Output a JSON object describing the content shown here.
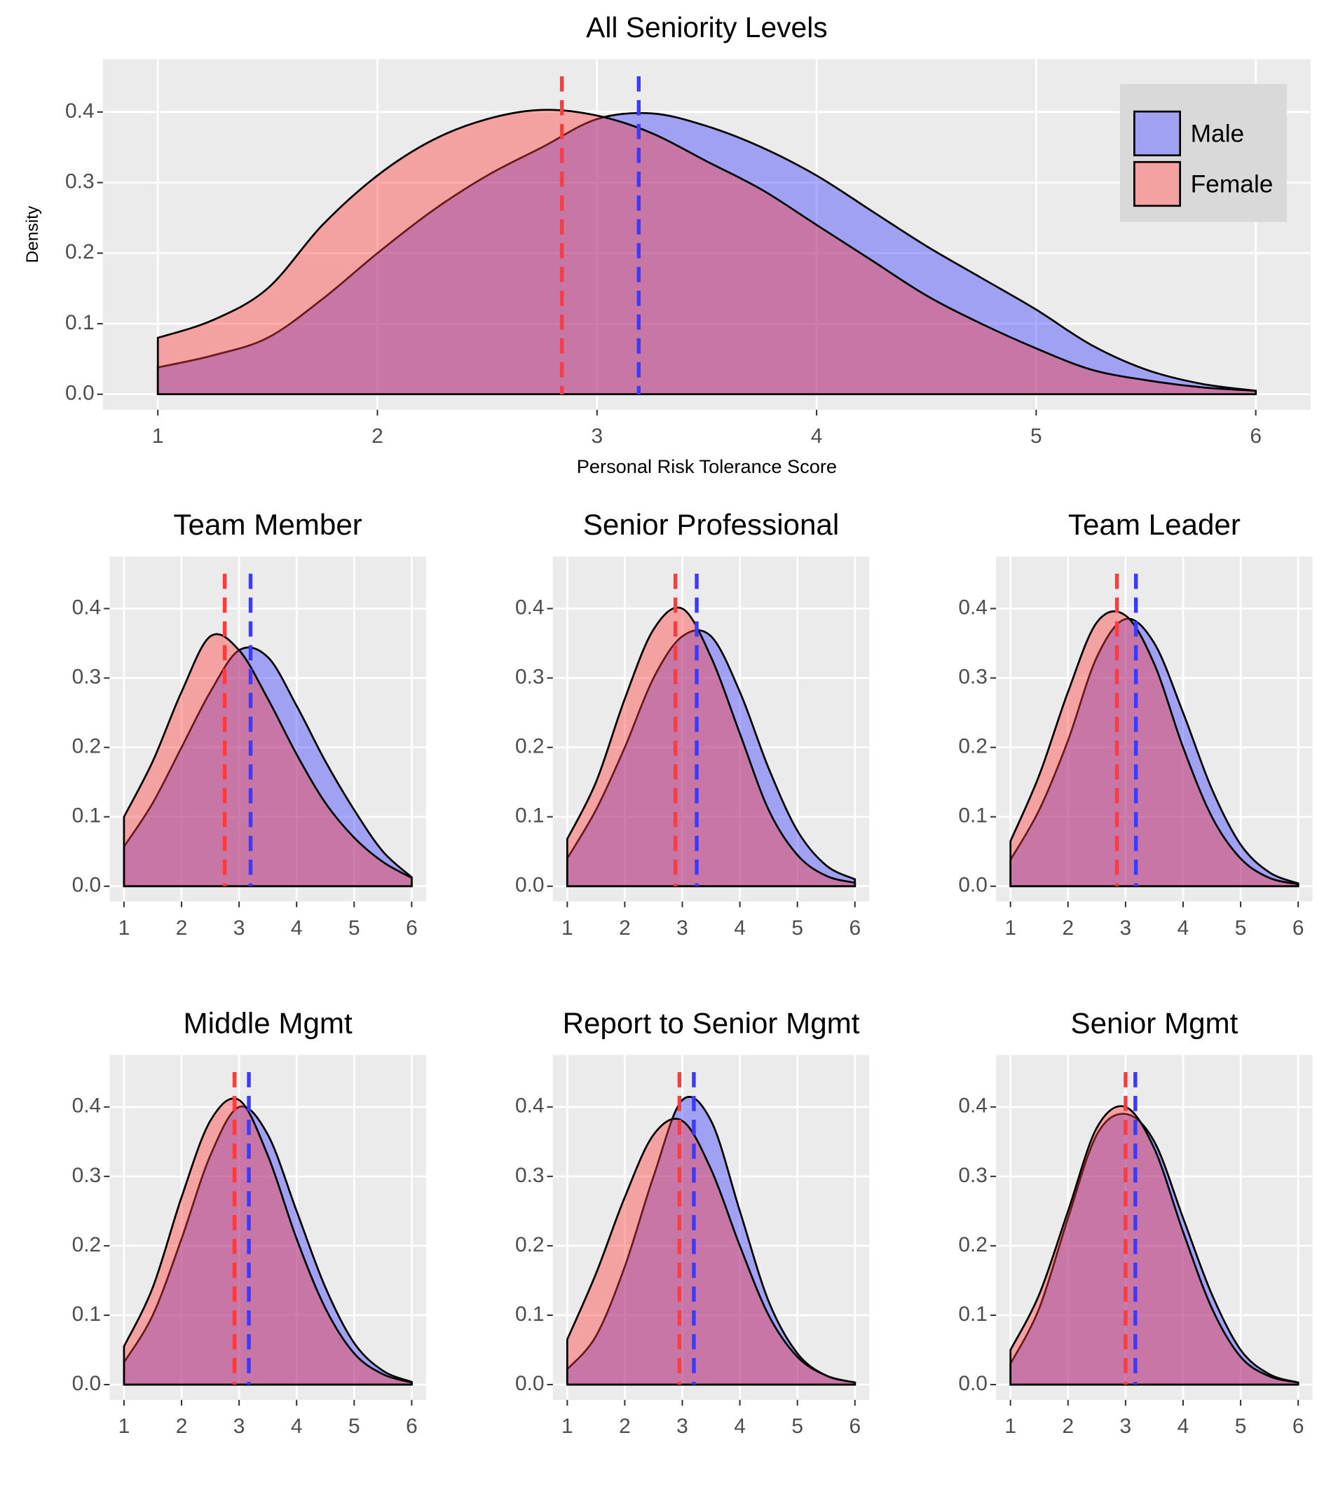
{
  "chart_data": [
    {
      "type": "density",
      "title": "All Seniority Levels",
      "x_label": "Personal Risk Tolerance Score",
      "y_label": "Density",
      "legend": "top-right",
      "grid": true,
      "x": [
        1,
        1.25,
        1.5,
        1.75,
        2,
        2.25,
        2.5,
        2.75,
        3,
        3.25,
        3.5,
        3.75,
        4,
        4.25,
        4.5,
        4.75,
        5,
        5.25,
        5.5,
        5.75,
        6
      ],
      "series": [
        {
          "name": "Male",
          "color": "#3b3bff",
          "mean": 3.19,
          "values": [
            0.038,
            0.055,
            0.08,
            0.135,
            0.2,
            0.26,
            0.31,
            0.35,
            0.39,
            0.398,
            0.38,
            0.35,
            0.31,
            0.26,
            0.21,
            0.165,
            0.12,
            0.07,
            0.035,
            0.015,
            0.005
          ]
        },
        {
          "name": "Female",
          "color": "#ff3b3b",
          "mean": 2.84,
          "values": [
            0.08,
            0.105,
            0.15,
            0.24,
            0.31,
            0.36,
            0.39,
            0.403,
            0.395,
            0.37,
            0.33,
            0.29,
            0.24,
            0.19,
            0.14,
            0.1,
            0.065,
            0.035,
            0.02,
            0.01,
            0.005
          ]
        }
      ],
      "xlim": [
        0.75,
        6.25
      ],
      "xticks": [
        1,
        2,
        3,
        4,
        5,
        6
      ],
      "ylim": [
        -0.022,
        0.475
      ],
      "yticks": [
        {
          "value": 0,
          "label": "0.0"
        },
        0.1,
        0.2,
        0.3,
        0.4
      ]
    },
    {
      "type": "density",
      "title": "Team Member",
      "grid": true,
      "x": [
        1,
        1.5,
        2,
        2.5,
        3,
        3.5,
        4,
        4.5,
        5,
        5.5,
        6
      ],
      "series": [
        {
          "name": "Male",
          "color": "#3b3bff",
          "mean": 3.2,
          "values": [
            0.057,
            0.12,
            0.2,
            0.28,
            0.34,
            0.33,
            0.26,
            0.18,
            0.11,
            0.05,
            0.013
          ]
        },
        {
          "name": "Female",
          "color": "#ff3b3b",
          "mean": 2.75,
          "values": [
            0.1,
            0.18,
            0.28,
            0.36,
            0.34,
            0.27,
            0.19,
            0.12,
            0.07,
            0.035,
            0.012
          ]
        }
      ],
      "xlim": [
        0.75,
        6.25
      ],
      "xticks": [
        1,
        2,
        3,
        4,
        5,
        6
      ],
      "ylim": [
        -0.022,
        0.475
      ],
      "yticks": [
        {
          "value": 0,
          "label": "0.0"
        },
        0.1,
        0.2,
        0.3,
        0.4
      ]
    },
    {
      "type": "density",
      "title": "Senior Professional",
      "grid": true,
      "x": [
        1,
        1.5,
        2,
        2.5,
        3,
        3.5,
        4,
        4.5,
        5,
        5.5,
        6
      ],
      "series": [
        {
          "name": "Male",
          "color": "#3b3bff",
          "mean": 3.25,
          "values": [
            0.04,
            0.11,
            0.2,
            0.3,
            0.36,
            0.36,
            0.28,
            0.17,
            0.08,
            0.03,
            0.01
          ]
        },
        {
          "name": "Female",
          "color": "#ff3b3b",
          "mean": 2.88,
          "values": [
            0.068,
            0.15,
            0.27,
            0.37,
            0.4,
            0.33,
            0.22,
            0.11,
            0.045,
            0.015,
            0.005
          ]
        }
      ],
      "xlim": [
        0.75,
        6.25
      ],
      "xticks": [
        1,
        2,
        3,
        4,
        5,
        6
      ],
      "ylim": [
        -0.022,
        0.475
      ],
      "yticks": [
        {
          "value": 0,
          "label": "0.0"
        },
        0.1,
        0.2,
        0.3,
        0.4
      ]
    },
    {
      "type": "density",
      "title": "Team Leader",
      "grid": true,
      "x": [
        1,
        1.5,
        2,
        2.5,
        3,
        3.5,
        4,
        4.5,
        5,
        5.5,
        6
      ],
      "series": [
        {
          "name": "Male",
          "color": "#3b3bff",
          "mean": 3.18,
          "values": [
            0.038,
            0.11,
            0.21,
            0.33,
            0.385,
            0.35,
            0.25,
            0.14,
            0.06,
            0.02,
            0.004
          ]
        },
        {
          "name": "Female",
          "color": "#ff3b3b",
          "mean": 2.85,
          "values": [
            0.065,
            0.16,
            0.28,
            0.38,
            0.39,
            0.32,
            0.2,
            0.1,
            0.04,
            0.012,
            0.003
          ]
        }
      ],
      "xlim": [
        0.75,
        6.25
      ],
      "xticks": [
        1,
        2,
        3,
        4,
        5,
        6
      ],
      "ylim": [
        -0.022,
        0.475
      ],
      "yticks": [
        {
          "value": 0,
          "label": "0.0"
        },
        0.1,
        0.2,
        0.3,
        0.4
      ]
    },
    {
      "type": "density",
      "title": "Middle Mgmt",
      "grid": true,
      "x": [
        1,
        1.5,
        2,
        2.5,
        3,
        3.5,
        4,
        4.5,
        5,
        5.5,
        6
      ],
      "series": [
        {
          "name": "Male",
          "color": "#3b3bff",
          "mean": 3.17,
          "values": [
            0.032,
            0.1,
            0.21,
            0.33,
            0.4,
            0.36,
            0.25,
            0.14,
            0.06,
            0.02,
            0.004
          ]
        },
        {
          "name": "Female",
          "color": "#ff3b3b",
          "mean": 2.92,
          "values": [
            0.055,
            0.14,
            0.27,
            0.38,
            0.41,
            0.33,
            0.21,
            0.11,
            0.045,
            0.015,
            0.003
          ]
        }
      ],
      "xlim": [
        0.75,
        6.25
      ],
      "xticks": [
        1,
        2,
        3,
        4,
        5,
        6
      ],
      "ylim": [
        -0.022,
        0.475
      ],
      "yticks": [
        {
          "value": 0,
          "label": "0.0"
        },
        0.1,
        0.2,
        0.3,
        0.4
      ]
    },
    {
      "type": "density",
      "title": "Report to Senior Mgmt",
      "grid": true,
      "x": [
        1,
        1.5,
        2,
        2.5,
        3,
        3.5,
        4,
        4.5,
        5,
        5.5,
        6
      ],
      "series": [
        {
          "name": "Male",
          "color": "#3b3bff",
          "mean": 3.2,
          "values": [
            0.022,
            0.07,
            0.17,
            0.3,
            0.41,
            0.38,
            0.25,
            0.12,
            0.045,
            0.013,
            0.003
          ]
        },
        {
          "name": "Female",
          "color": "#ff3b3b",
          "mean": 2.95,
          "values": [
            0.065,
            0.16,
            0.27,
            0.36,
            0.38,
            0.31,
            0.2,
            0.1,
            0.04,
            0.013,
            0.003
          ]
        }
      ],
      "xlim": [
        0.75,
        6.25
      ],
      "xticks": [
        1,
        2,
        3,
        4,
        5,
        6
      ],
      "ylim": [
        -0.022,
        0.475
      ],
      "yticks": [
        {
          "value": 0,
          "label": "0.0"
        },
        0.1,
        0.2,
        0.3,
        0.4
      ]
    },
    {
      "type": "density",
      "title": "Senior Mgmt",
      "grid": true,
      "x": [
        1,
        1.5,
        2,
        2.5,
        3,
        3.5,
        4,
        4.5,
        5,
        5.5,
        6
      ],
      "series": [
        {
          "name": "Male",
          "color": "#3b3bff",
          "mean": 3.17,
          "values": [
            0.03,
            0.11,
            0.24,
            0.36,
            0.39,
            0.35,
            0.24,
            0.13,
            0.05,
            0.015,
            0.003
          ]
        },
        {
          "name": "Female",
          "color": "#ff3b3b",
          "mean": 3.0,
          "values": [
            0.05,
            0.13,
            0.25,
            0.37,
            0.4,
            0.34,
            0.22,
            0.11,
            0.04,
            0.012,
            0.003
          ]
        }
      ],
      "xlim": [
        0.75,
        6.25
      ],
      "xticks": [
        1,
        2,
        3,
        4,
        5,
        6
      ],
      "ylim": [
        -0.022,
        0.475
      ],
      "yticks": [
        {
          "value": 0,
          "label": "0.0"
        },
        0.1,
        0.2,
        0.3,
        0.4
      ]
    }
  ]
}
